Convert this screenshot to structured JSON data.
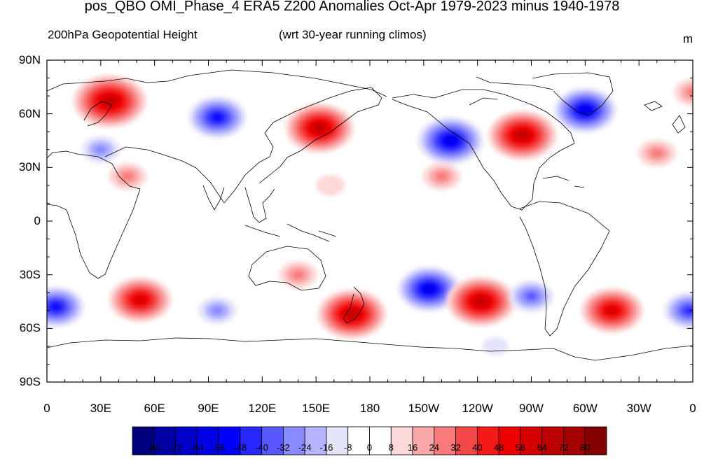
{
  "title": "pos_QBO OMI_Phase_4 ERA5 Z200 Anomalies Oct-Apr 1979-2023 minus 1940-1978",
  "left_subtitle": "200hPa Geopotential Height",
  "center_subtitle": "(wrt 30-year running climos)",
  "units": "m",
  "lat_labels": [
    "90N",
    "60N",
    "30N",
    "0",
    "30S",
    "60S",
    "90S"
  ],
  "lon_labels": [
    "0",
    "30E",
    "60E",
    "90E",
    "120E",
    "150E",
    "180",
    "150W",
    "120W",
    "90W",
    "60W",
    "30W",
    "0"
  ],
  "colorbar": {
    "levels": [
      "-80",
      "-72",
      "-64",
      "-56",
      "-48",
      "-40",
      "-32",
      "-24",
      "-16",
      "-8",
      "0",
      "8",
      "16",
      "24",
      "32",
      "40",
      "48",
      "56",
      "64",
      "72",
      "80"
    ],
    "colors": [
      "#00007f",
      "#0000a5",
      "#0000c8",
      "#0000e5",
      "#0000ff",
      "#2828ff",
      "#5757ff",
      "#8a8aff",
      "#b4b4ff",
      "#e4e4fb",
      "#ffffff",
      "#ffffff",
      "#fcd9d9",
      "#faa8a8",
      "#f87a7a",
      "#f44848",
      "#f51a1a",
      "#ee0000",
      "#d60000",
      "#bb0000",
      "#a40000",
      "#850000"
    ]
  },
  "chart_data": {
    "type": "heatmap",
    "variable": "200hPa Geopotential Height",
    "units": "m",
    "xlim": [
      0,
      360
    ],
    "ylim": [
      -90,
      90
    ],
    "contour_levels": [
      -80,
      -72,
      -64,
      -56,
      -48,
      -40,
      -32,
      -24,
      -16,
      -8,
      0,
      8,
      16,
      24,
      32,
      40,
      48,
      56,
      64,
      72,
      80
    ],
    "anomaly_centers": [
      {
        "lon": 35,
        "lat": 67,
        "value": 70
      },
      {
        "lon": 95,
        "lat": 58,
        "value": -50
      },
      {
        "lon": 30,
        "lat": 40,
        "value": -24
      },
      {
        "lon": 45,
        "lat": 25,
        "value": 24
      },
      {
        "lon": 152,
        "lat": 52,
        "value": 64
      },
      {
        "lon": 225,
        "lat": 45,
        "value": -60
      },
      {
        "lon": 265,
        "lat": 48,
        "value": 64
      },
      {
        "lon": 300,
        "lat": 62,
        "value": -56
      },
      {
        "lon": 340,
        "lat": 38,
        "value": 24
      },
      {
        "lon": 360,
        "lat": 72,
        "value": 24
      },
      {
        "lon": 220,
        "lat": 25,
        "value": 24
      },
      {
        "lon": 158,
        "lat": 20,
        "value": 12
      },
      {
        "lon": 52,
        "lat": -44,
        "value": 56
      },
      {
        "lon": 5,
        "lat": -48,
        "value": -48
      },
      {
        "lon": 95,
        "lat": -50,
        "value": -24
      },
      {
        "lon": 140,
        "lat": -30,
        "value": 24
      },
      {
        "lon": 170,
        "lat": -52,
        "value": 64
      },
      {
        "lon": 213,
        "lat": -38,
        "value": -56
      },
      {
        "lon": 242,
        "lat": -45,
        "value": 64
      },
      {
        "lon": 270,
        "lat": -42,
        "value": -32
      },
      {
        "lon": 315,
        "lat": -50,
        "value": 56
      },
      {
        "lon": 358,
        "lat": -50,
        "value": -40
      },
      {
        "lon": 250,
        "lat": -70,
        "value": -8
      }
    ]
  }
}
